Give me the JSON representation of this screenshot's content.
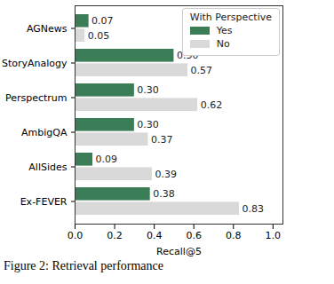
{
  "chart_data": {
    "type": "bar",
    "orientation": "horizontal",
    "caption": "Figure 2: Retrieval performance",
    "x_label": "Recall@5",
    "legend_title": "With Perspective",
    "legend": "upper right",
    "data_labels": true,
    "categories": [
      "AGNews",
      "StoryAnalogy",
      "Perspectrum",
      "AmbigQA",
      "AllSides",
      "Ex-FEVER"
    ],
    "series": [
      {
        "name": "Yes",
        "color": "#3b7d57",
        "values": [
          0.07,
          0.5,
          0.3,
          0.3,
          0.09,
          0.38
        ],
        "value_labels": [
          "0.07",
          "0.50",
          "0.30",
          "0.30",
          "0.09",
          "0.38"
        ]
      },
      {
        "name": "No",
        "color": "#d9d9d9",
        "values": [
          0.05,
          0.57,
          0.62,
          0.37,
          0.39,
          0.83
        ],
        "value_labels": [
          "0.05",
          "0.57",
          "0.62",
          "0.37",
          "0.39",
          "0.83"
        ]
      }
    ],
    "xlim": [
      0,
      1.05
    ],
    "xticks": [
      {
        "value": 0,
        "label": "0.0"
      },
      {
        "value": 0.2,
        "label": "0.2"
      },
      {
        "value": 0.4,
        "label": "0.4"
      },
      {
        "value": 0.6,
        "label": "0.6"
      },
      {
        "value": 0.8,
        "label": "0.8"
      },
      {
        "value": 1,
        "label": "1.0"
      }
    ]
  }
}
